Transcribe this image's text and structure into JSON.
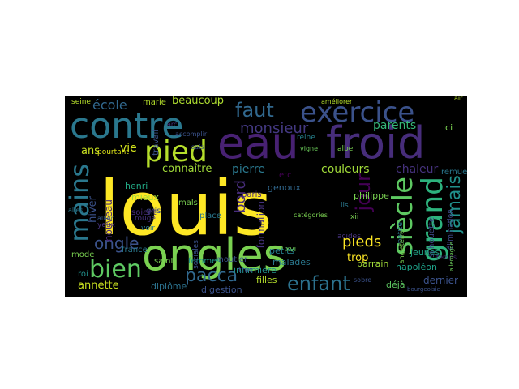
{
  "wordcloud": {
    "background": "#000000",
    "colormap": "viridis",
    "words": [
      {
        "text": "louis",
        "color": "#fde725"
      },
      {
        "text": "ongles",
        "color": "#7ad151"
      },
      {
        "text": "froid",
        "color": "#472d7b"
      },
      {
        "text": "eau",
        "color": "#482173"
      },
      {
        "text": "contre",
        "color": "#2a788e"
      },
      {
        "text": "exercice",
        "color": "#3b528b"
      },
      {
        "text": "pied",
        "color": "#b5de2b"
      },
      {
        "text": "siècle",
        "color": "#5ec962"
      },
      {
        "text": "grand",
        "color": "#2db27d"
      },
      {
        "text": "mains",
        "color": "#2a788e"
      },
      {
        "text": "bien",
        "color": "#5ec962"
      },
      {
        "text": "jour",
        "color": "#440154"
      },
      {
        "text": "jamais",
        "color": "#21918c"
      },
      {
        "text": "enfant",
        "color": "#2c728e"
      },
      {
        "text": "faut",
        "color": "#31688e"
      },
      {
        "text": "monsieur",
        "color": "#443983"
      },
      {
        "text": "ongle",
        "color": "#3b528b"
      },
      {
        "text": "pacca",
        "color": "#31688e"
      },
      {
        "text": "pieds",
        "color": "#fde725"
      },
      {
        "text": "école",
        "color": "#31688e"
      },
      {
        "text": "parents",
        "color": "#35b779"
      },
      {
        "text": "chaleur",
        "color": "#46327e"
      },
      {
        "text": "pierre",
        "color": "#2a788e"
      },
      {
        "text": "couleurs",
        "color": "#a0da39"
      },
      {
        "text": "connaître",
        "color": "#a0da39"
      },
      {
        "text": "beaucoup",
        "color": "#addc30"
      },
      {
        "text": "annette",
        "color": "#c8e020"
      },
      {
        "text": "dernier",
        "color": "#3b528b"
      },
      {
        "text": "trop",
        "color": "#fde725"
      },
      {
        "text": "ans",
        "color": "#c8e020"
      },
      {
        "text": "vie",
        "color": "#d2e21b"
      },
      {
        "text": "diplôme",
        "color": "#2c728e"
      },
      {
        "text": "digestion",
        "color": "#3b528b"
      },
      {
        "text": "infirmière",
        "color": "#21918c"
      },
      {
        "text": "filles",
        "color": "#b5de2b"
      },
      {
        "text": "malades",
        "color": "#2a788e"
      },
      {
        "text": "napoléon",
        "color": "#1fa188"
      },
      {
        "text": "jeunes",
        "color": "#20a386"
      },
      {
        "text": "bord",
        "color": "#472d7b"
      },
      {
        "text": "hiver",
        "color": "#3b528b"
      },
      {
        "text": "nouveau",
        "color": "#482878"
      },
      {
        "text": "henri",
        "color": "#22a884"
      },
      {
        "text": "mieux",
        "color": "#a0da39"
      },
      {
        "text": "gris",
        "color": "#3e4989"
      },
      {
        "text": "femmes",
        "color": "#1f988b"
      },
      {
        "text": "saint",
        "color": "#7ad151"
      },
      {
        "text": "france",
        "color": "#2a788e"
      },
      {
        "text": "mode",
        "color": "#7ad151"
      },
      {
        "text": "roi",
        "color": "#21918c"
      },
      {
        "text": "place",
        "color": "#2a788e"
      },
      {
        "text": "soient",
        "color": "#472d7b"
      },
      {
        "text": "paris",
        "color": "#482878"
      },
      {
        "text": "petits",
        "color": "#26828e"
      },
      {
        "text": "parrain",
        "color": "#a0da39"
      },
      {
        "text": "déjà",
        "color": "#5ec962"
      },
      {
        "text": "truc",
        "color": "#3e4a89"
      },
      {
        "text": "genoux",
        "color": "#31688e"
      },
      {
        "text": "etc",
        "color": "#440154"
      },
      {
        "text": "ici",
        "color": "#7ad151"
      },
      {
        "text": "marie",
        "color": "#b5de2b"
      },
      {
        "text": "seine",
        "color": "#b5de2b"
      },
      {
        "text": "pourtant",
        "color": "#dde318"
      },
      {
        "text": "mals",
        "color": "#7ad151"
      },
      {
        "text": "reine",
        "color": "#26828e"
      },
      {
        "text": "remuer",
        "color": "#2a788e"
      },
      {
        "text": "élimination",
        "color": "#3e4989"
      },
      {
        "text": "silhouette",
        "color": "#3e4989"
      },
      {
        "text": "philippe",
        "color": "#7ad151"
      },
      {
        "text": "moutier",
        "color": "#3b528b"
      },
      {
        "text": "voir",
        "color": "#2a788e"
      },
      {
        "text": "yeux",
        "color": "#46327e"
      },
      {
        "text": "xvi",
        "color": "#6ccd5a"
      },
      {
        "text": "temps",
        "color": "#472c7a"
      },
      {
        "text": "petite",
        "color": "#2a788e"
      },
      {
        "text": "acides",
        "color": "#46327e"
      },
      {
        "text": "formation",
        "color": "#46327e"
      },
      {
        "text": "sociales",
        "color": "#3b528b"
      },
      {
        "text": "travail",
        "color": "#3b528b"
      },
      {
        "text": "sobre",
        "color": "#3b528b"
      },
      {
        "text": "allier",
        "color": "#38598c"
      },
      {
        "text": "arc",
        "color": "#46327e"
      },
      {
        "text": "accomplir",
        "color": "#3b528b"
      },
      {
        "text": "albe",
        "color": "#7ad151"
      },
      {
        "text": "rouge",
        "color": "#46327e"
      },
      {
        "text": "vigne",
        "color": "#6ccd5a"
      },
      {
        "text": "air",
        "color": "#b5de2b"
      },
      {
        "text": "améliorer",
        "color": "#b5de2b"
      },
      {
        "text": "alles",
        "color": "#2a788e"
      },
      {
        "text": "xii",
        "color": "#7ad151"
      },
      {
        "text": "lls",
        "color": "#2a788e"
      },
      {
        "text": "sais",
        "color": "#3b528b"
      },
      {
        "text": "bourgeoisie",
        "color": "#3b528b"
      },
      {
        "text": "angleterre",
        "color": "#7ad151"
      },
      {
        "text": "catégories",
        "color": "#7ad151"
      },
      {
        "text": "allemagne",
        "color": "#6ccd5a"
      }
    ]
  }
}
